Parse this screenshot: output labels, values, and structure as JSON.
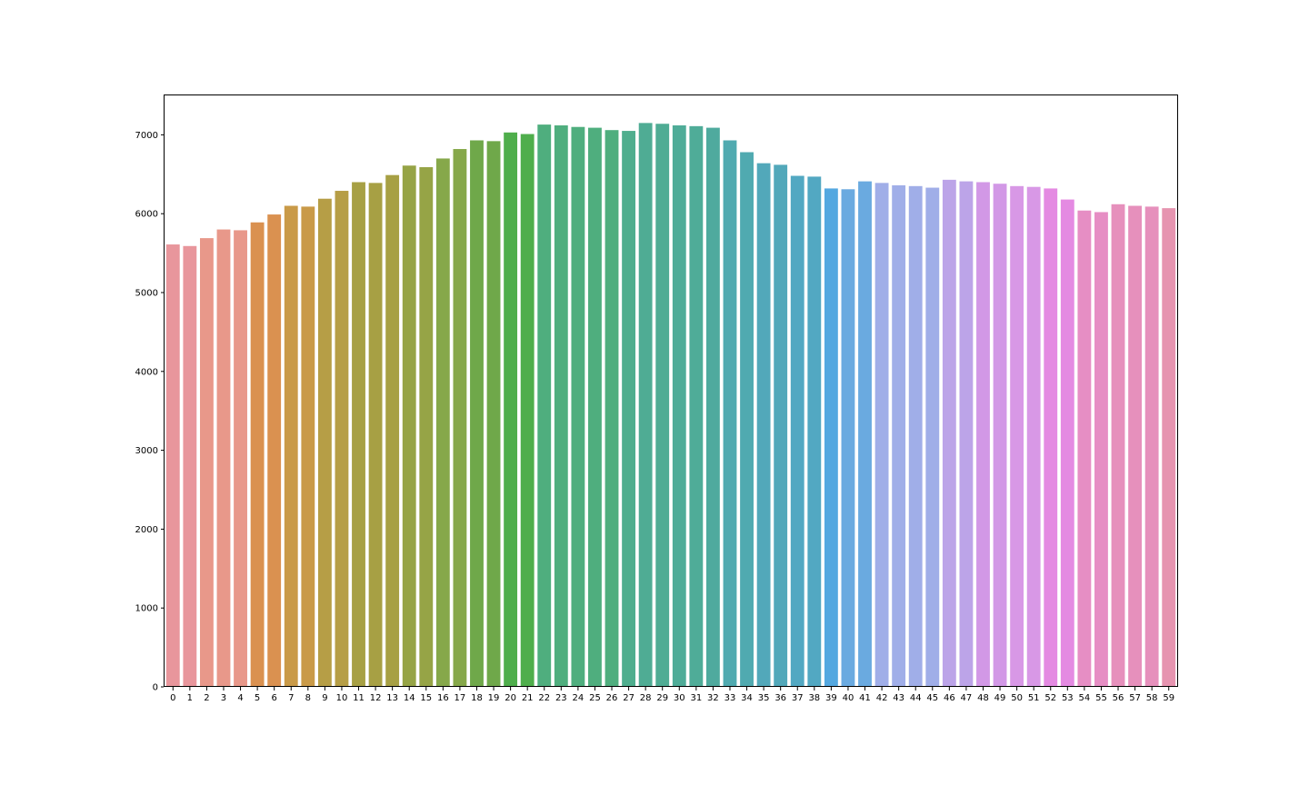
{
  "chart_data": {
    "type": "bar",
    "title": "",
    "xlabel": "",
    "ylabel": "",
    "ylim": [
      0,
      7500
    ],
    "yticks": [
      0,
      1000,
      2000,
      3000,
      4000,
      5000,
      6000,
      7000
    ],
    "ytick_labels": [
      "0",
      "1000",
      "2000",
      "3000",
      "4000",
      "5000",
      "6000",
      "7000"
    ],
    "categories": [
      "0",
      "1",
      "2",
      "3",
      "4",
      "5",
      "6",
      "7",
      "8",
      "9",
      "10",
      "11",
      "12",
      "13",
      "14",
      "15",
      "16",
      "17",
      "18",
      "19",
      "20",
      "21",
      "22",
      "23",
      "24",
      "25",
      "26",
      "27",
      "28",
      "29",
      "30",
      "31",
      "32",
      "33",
      "34",
      "35",
      "36",
      "37",
      "38",
      "39",
      "40",
      "41",
      "42",
      "43",
      "44",
      "45",
      "46",
      "47",
      "48",
      "49",
      "50",
      "51",
      "52",
      "53",
      "54",
      "55",
      "56",
      "57",
      "58",
      "59"
    ],
    "values": [
      5610,
      5590,
      5690,
      5800,
      5790,
      5890,
      5990,
      6100,
      6090,
      6190,
      6290,
      6400,
      6390,
      6490,
      6610,
      6590,
      6700,
      6820,
      6930,
      6920,
      7030,
      7010,
      7130,
      7120,
      7100,
      7090,
      7060,
      7050,
      7150,
      7140,
      7120,
      7110,
      7090,
      6930,
      6780,
      6640,
      6620,
      6480,
      6470,
      6320,
      6310,
      6410,
      6390,
      6360,
      6350,
      6330,
      6430,
      6410,
      6400,
      6380,
      6350,
      6340,
      6320,
      6180,
      6040,
      6020,
      6120,
      6100,
      6090,
      6070
    ],
    "colors": [
      "#e8969c",
      "#e8969c",
      "#e8988a",
      "#e8988a",
      "#e8988a",
      "#da9150",
      "#da9150",
      "#c99a48",
      "#c99a48",
      "#b69e46",
      "#b69e46",
      "#a7a044",
      "#a7a044",
      "#a7a044",
      "#96a446",
      "#96a446",
      "#86a84a",
      "#86a84a",
      "#6fa84a",
      "#6fa84a",
      "#4fae4c",
      "#4fae4c",
      "#4fae7e",
      "#4fae7e",
      "#4fae7e",
      "#4fae7e",
      "#4fae7e",
      "#4fae8e",
      "#4fac94",
      "#4fac94",
      "#4fac98",
      "#4fac98",
      "#4faa9e",
      "#50aab0",
      "#50aab0",
      "#52a8ba",
      "#52a8ba",
      "#52a8c2",
      "#52a8c2",
      "#54a8e0",
      "#6aaae0",
      "#6aaae0",
      "#a0aee8",
      "#a0aee8",
      "#a0aee8",
      "#a0aee8",
      "#bca4e8",
      "#bca4e8",
      "#d298e6",
      "#d298e6",
      "#d898e6",
      "#d898e6",
      "#e48ae2",
      "#e48ae2",
      "#e68ec4",
      "#e68ec4",
      "#e690bc",
      "#e690bc",
      "#e690bc",
      "#e694b0"
    ],
    "grid": false,
    "legend": "none"
  }
}
